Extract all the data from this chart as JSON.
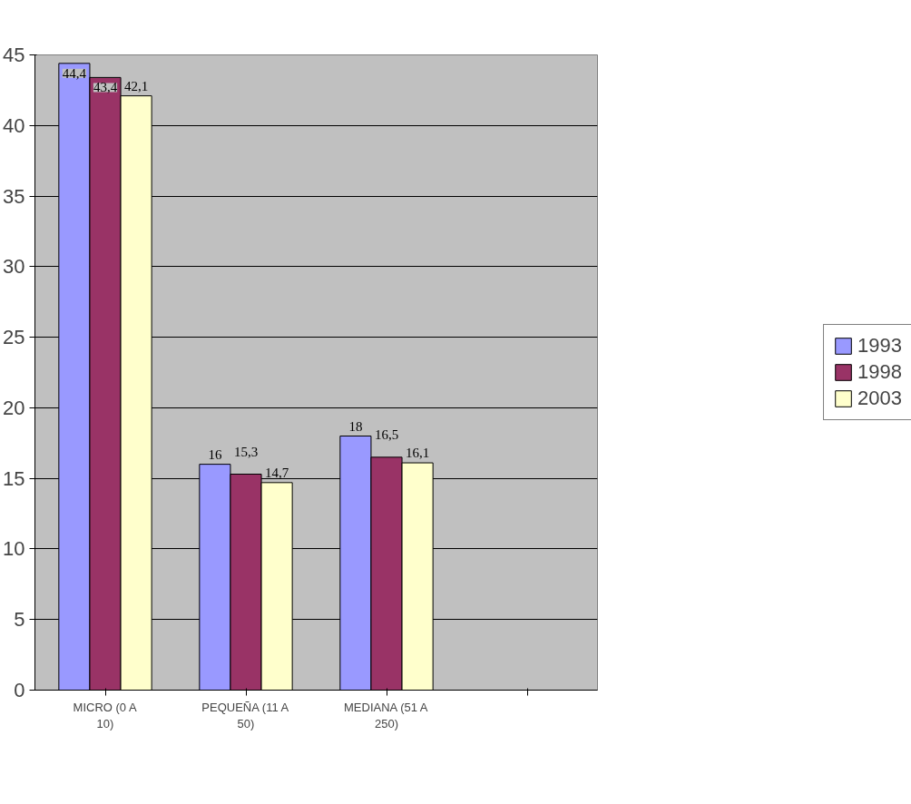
{
  "chart_data": {
    "type": "bar",
    "categories": [
      "MICRO (0 A 10)",
      "PEQUEÑA (11 A 50)",
      "MEDIANA (51 A 250)",
      null
    ],
    "series": [
      {
        "name": "1993",
        "color": "#9999ff",
        "values": [
          44.4,
          16,
          18,
          null
        ],
        "value_labels": [
          "44,4",
          "16",
          "18",
          null
        ]
      },
      {
        "name": "1998",
        "color": "#993366",
        "values": [
          43.4,
          15.3,
          16.5,
          null
        ],
        "value_labels": [
          "43,4",
          "15,3",
          "16,5",
          null
        ]
      },
      {
        "name": "2003",
        "color": "#ffffcc",
        "values": [
          42.1,
          14.7,
          16.1,
          null
        ],
        "value_labels": [
          "42,1",
          "14,7",
          "16,1",
          null
        ]
      }
    ],
    "ylim": [
      0,
      45
    ],
    "yticks": [
      0,
      5,
      10,
      15,
      20,
      25,
      30,
      35,
      40,
      45
    ],
    "grid": "y",
    "legend": "right"
  }
}
